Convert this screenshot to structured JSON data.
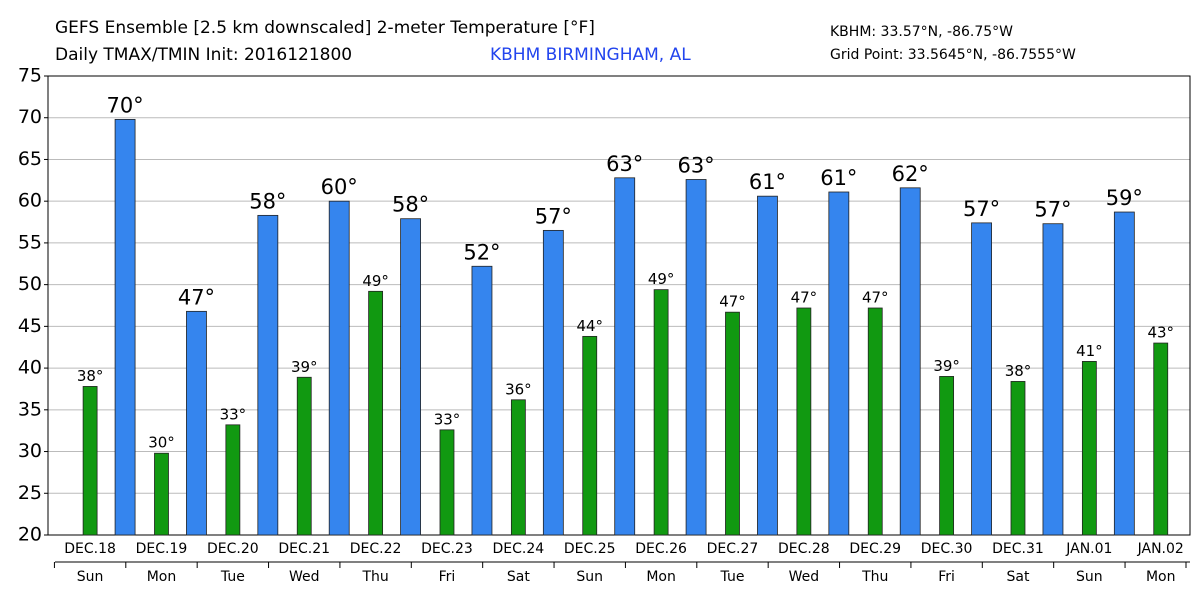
{
  "chart_data": {
    "type": "bar",
    "title": "GEFS Ensemble [2.5 km downscaled] 2-meter Temperature [°F]",
    "subtitle": "Daily TMAX/TMIN Init: 2016121800",
    "station": "KBHM BIRMINGHAM, AL",
    "station_coords": "KBHM: 33.57°N, -86.75°W",
    "grid_point": "Grid Point: 33.5645°N, -86.7555°W",
    "categories": [
      "DEC.18",
      "DEC.19",
      "DEC.20",
      "DEC.21",
      "DEC.22",
      "DEC.23",
      "DEC.24",
      "DEC.25",
      "DEC.26",
      "DEC.27",
      "DEC.28",
      "DEC.29",
      "DEC.30",
      "DEC.31",
      "JAN.01",
      "JAN.02"
    ],
    "weekdays": [
      "Sun",
      "Mon",
      "Tue",
      "Wed",
      "Thu",
      "Fri",
      "Sat",
      "Sun",
      "Mon",
      "Tue",
      "Wed",
      "Thu",
      "Fri",
      "Sat",
      "Sun",
      "Mon"
    ],
    "series": [
      {
        "name": "TMIN",
        "color": "#119911",
        "values": [
          37.8,
          29.8,
          33.2,
          38.9,
          49.2,
          32.6,
          36.2,
          43.8,
          49.4,
          46.7,
          47.2,
          47.2,
          39.0,
          38.4,
          40.8,
          43.0
        ],
        "value_labels": [
          "38°",
          "30°",
          "33°",
          "39°",
          "49°",
          "33°",
          "36°",
          "44°",
          "49°",
          "47°",
          "47°",
          "47°",
          "39°",
          "38°",
          "41°",
          "43°"
        ]
      },
      {
        "name": "TMAX",
        "color": "#3585ee",
        "values": [
          69.8,
          46.8,
          58.3,
          60.0,
          57.9,
          52.2,
          56.5,
          62.8,
          62.6,
          60.6,
          61.1,
          61.6,
          57.4,
          57.3,
          58.7,
          null
        ],
        "value_labels": [
          "70°",
          "47°",
          "58°",
          "60°",
          "58°",
          "52°",
          "57°",
          "63°",
          "63°",
          "61°",
          "61°",
          "62°",
          "57°",
          "57°",
          "59°",
          null
        ]
      }
    ],
    "ylim": [
      20,
      75
    ],
    "yticks": [
      20,
      25,
      30,
      35,
      40,
      45,
      50,
      55,
      60,
      65,
      70,
      75
    ],
    "grid": true
  }
}
